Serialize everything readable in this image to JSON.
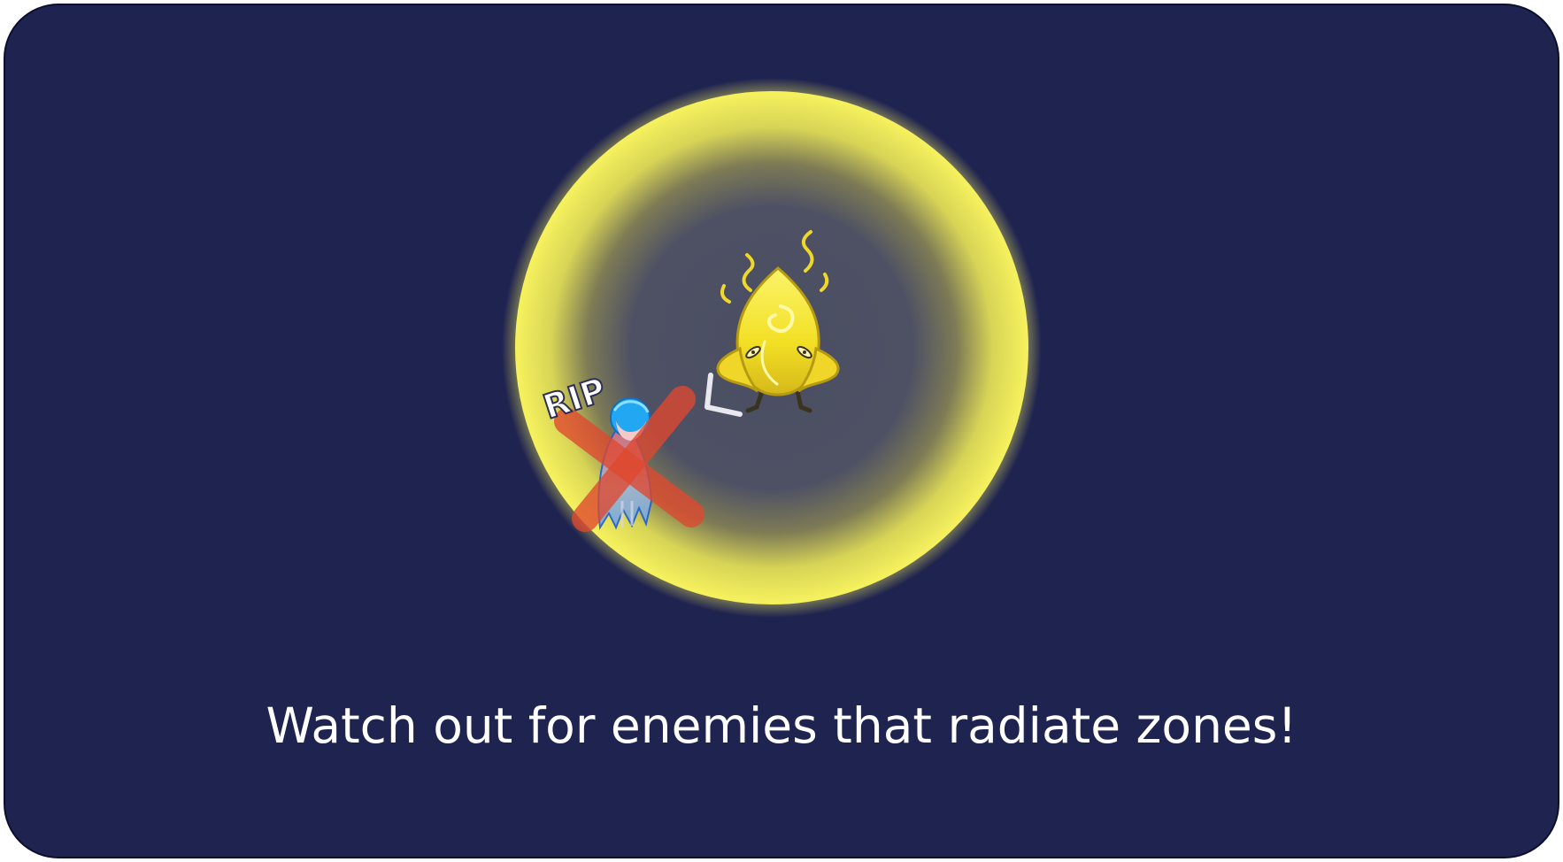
{
  "scene": {
    "player_label": "RIP",
    "player_state": "dead",
    "enemy_name": "yellow-radiating-enemy"
  },
  "caption": {
    "text": "Watch out for enemies that radiate zones!"
  },
  "colors": {
    "background": "#1f2350",
    "zone_glow": "#f2ee5a",
    "enemy": "#f5e42a",
    "player_hair": "#22a8f2",
    "cross": "#e0482f",
    "caption_text": "#ffffff"
  },
  "icons": {
    "speech_mark": "angle-bracket-icon"
  }
}
